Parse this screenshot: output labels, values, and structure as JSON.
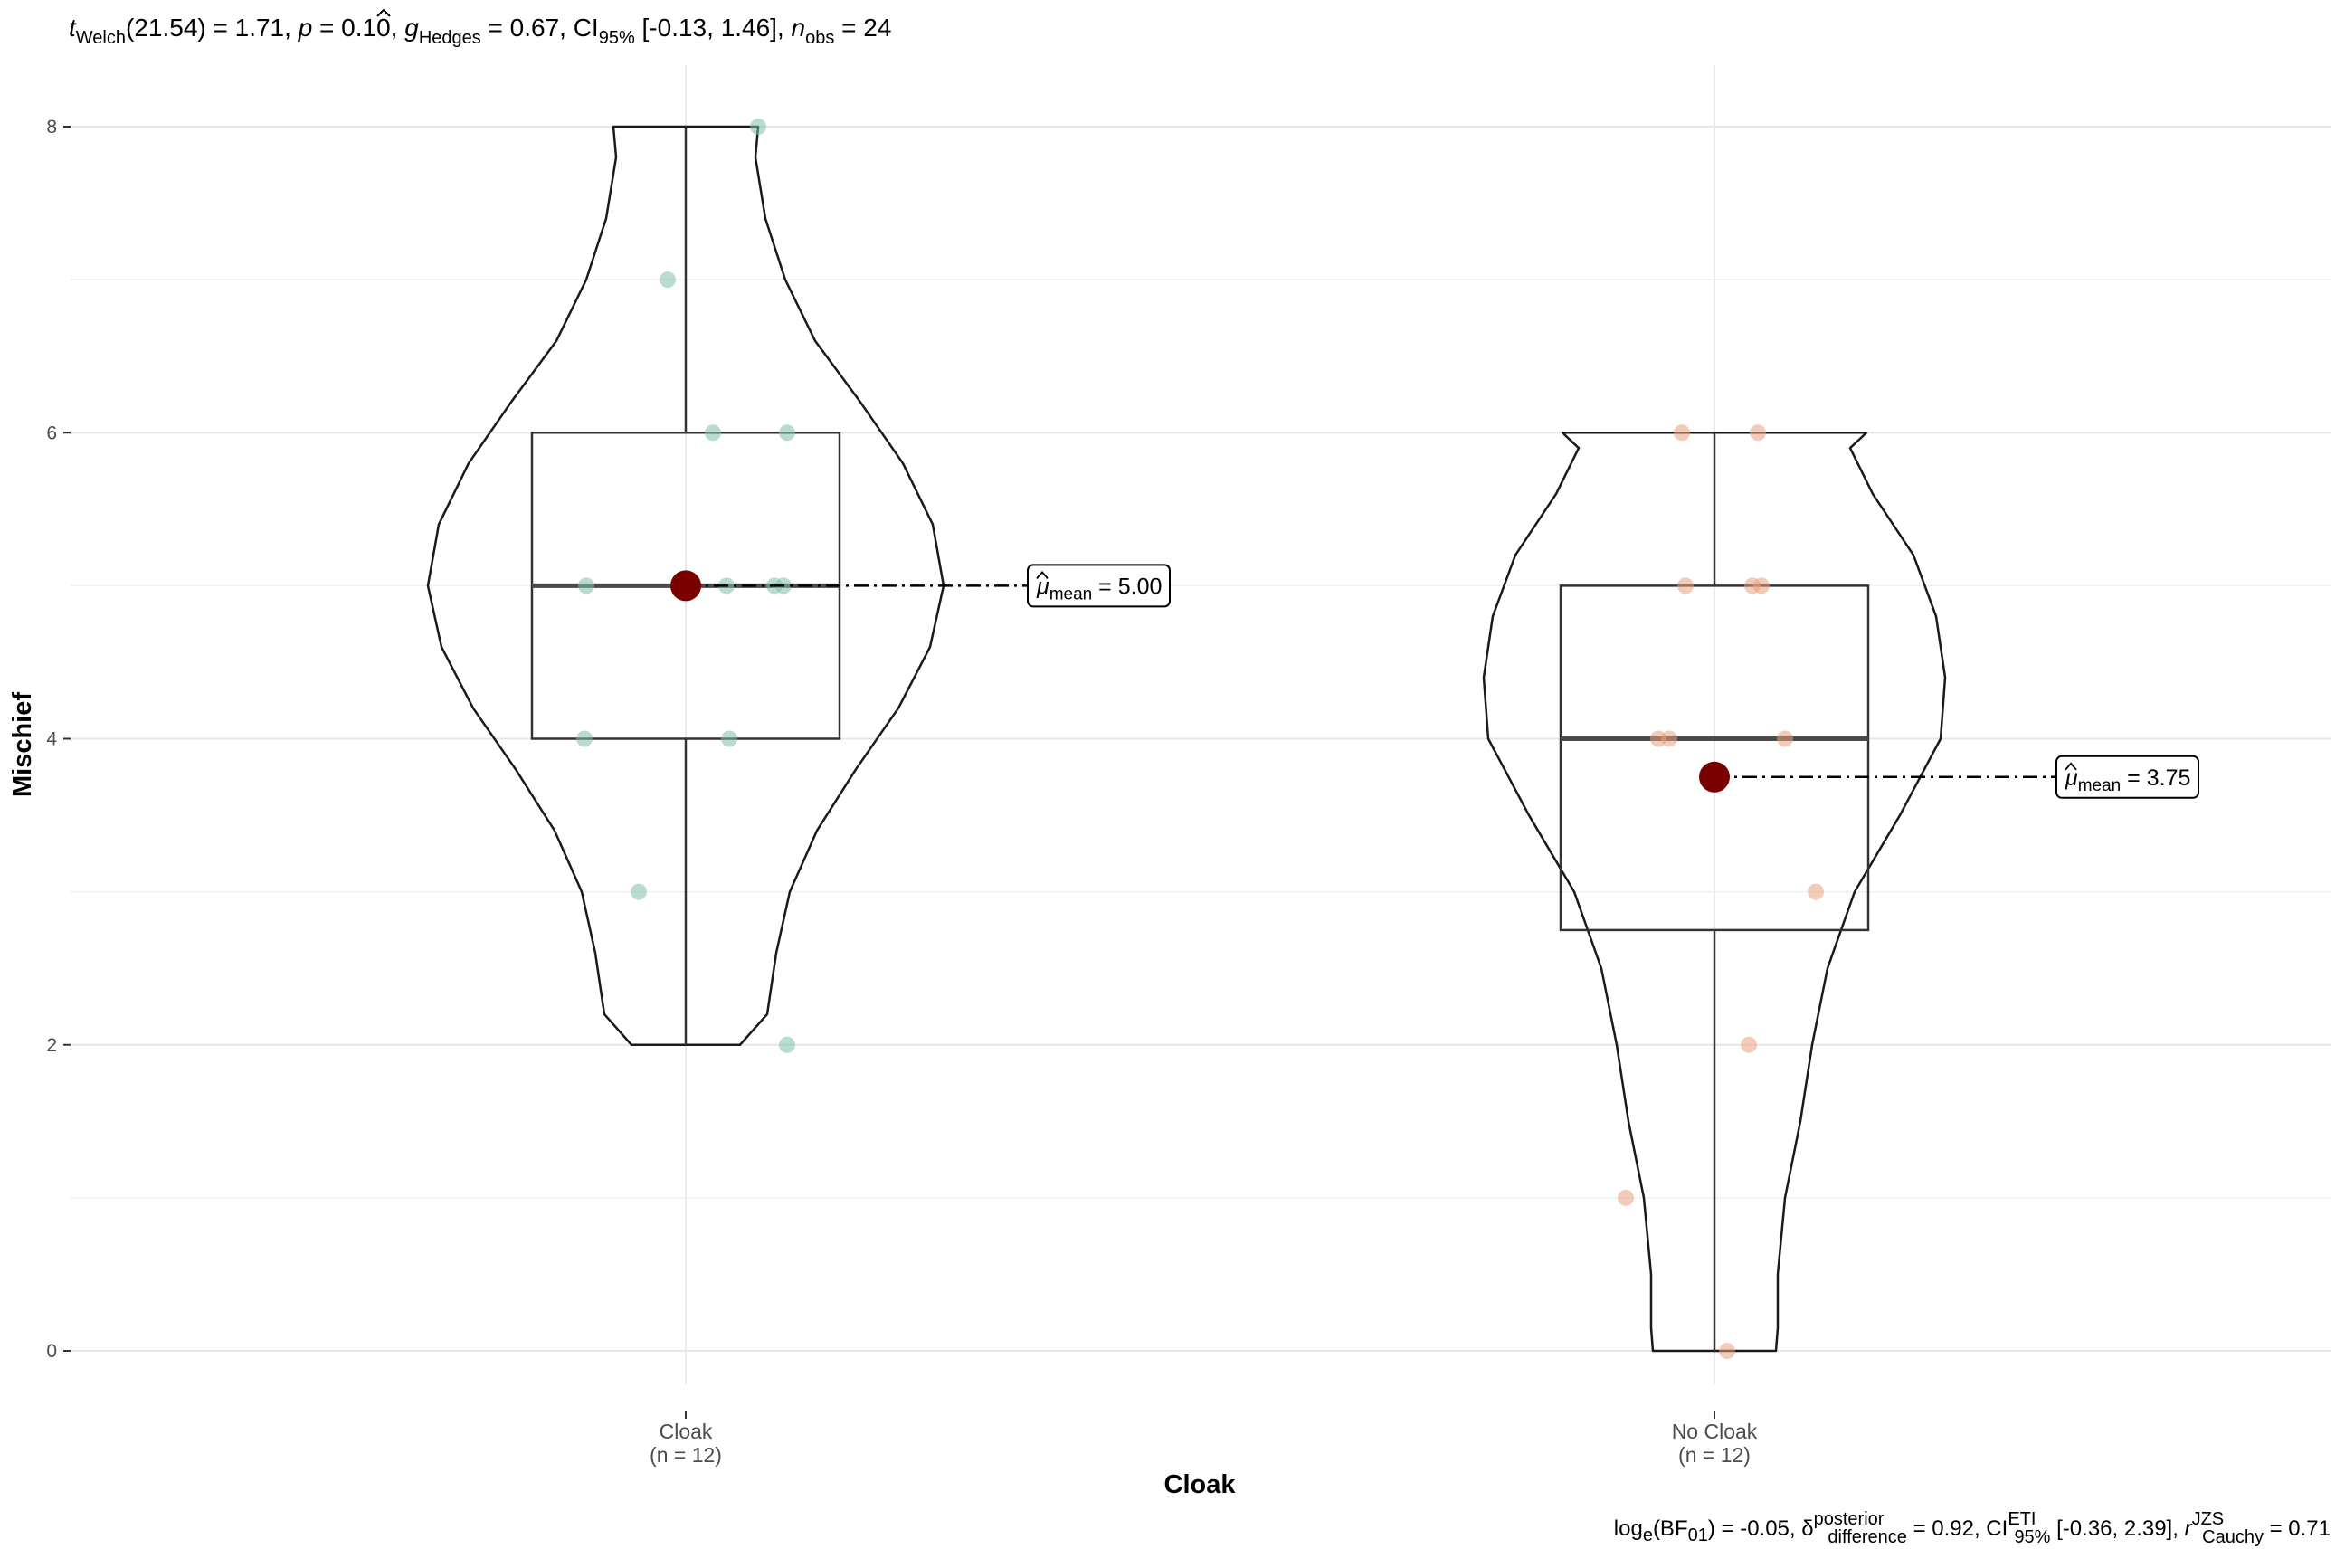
{
  "chart_data": {
    "type": "violin-box",
    "subtitle": {
      "t_sym": "t",
      "t_sub": "Welch",
      "t_val": "(21.54) = 1.71, ",
      "p_sym": "p",
      "p_val": " = 0.10, ",
      "g_sym": "g",
      "g_sub": "Hedges",
      "g_val": " = 0.67, CI",
      "ci_sub": "95%",
      "ci_val": " [-0.13, 1.46], ",
      "n_sym": "n",
      "n_sub": "obs",
      "n_val": " = 24"
    },
    "caption": {
      "log": "log",
      "log_sub": "e",
      "bf_open": "(BF",
      "bf_sub": "01",
      "bf_close": ") = -0.05, ",
      "delta_sym": "δ",
      "delta_sup": "posterior",
      "delta_sub": "difference",
      "delta_val": " = 0.92, CI",
      "ci_sup": "ETI",
      "ci_sub": "95%",
      "ci_val": " [-0.36, 2.39], ",
      "r_sym": "r",
      "r_sup": "JZS",
      "r_sub": "Cauchy",
      "r_val": " = 0.71"
    },
    "xlabel": "Cloak",
    "ylabel": "Mischief",
    "ylim": [
      0,
      8
    ],
    "yticks": [
      "0",
      "2",
      "4",
      "6",
      "8"
    ],
    "grid": true,
    "groups": [
      {
        "name": "Cloak",
        "n_label": "(n = 12)",
        "color": "#7fbfa6",
        "points": [
          8,
          7,
          6,
          6,
          5,
          5,
          5,
          4,
          4,
          3,
          2,
          5
        ],
        "box": {
          "min": 2,
          "q1": 4,
          "median": 5,
          "q3": 6,
          "max": 8
        },
        "mean": 5.0,
        "mean_label": {
          "mu": "μ",
          "sub": "mean",
          "val": " = 5.00"
        }
      },
      {
        "name": "No Cloak",
        "n_label": "(n = 12)",
        "color": "#e8a07f",
        "points": [
          6,
          6,
          5,
          5,
          5,
          4,
          4,
          4,
          3,
          2,
          1,
          0
        ],
        "box": {
          "min": 0,
          "q1": 2.75,
          "median": 4,
          "q3": 5,
          "max": 6
        },
        "mean": 3.75,
        "mean_label": {
          "mu": "μ",
          "sub": "mean",
          "val": " = 3.75"
        }
      }
    ],
    "mean_color": "#7a0000"
  }
}
